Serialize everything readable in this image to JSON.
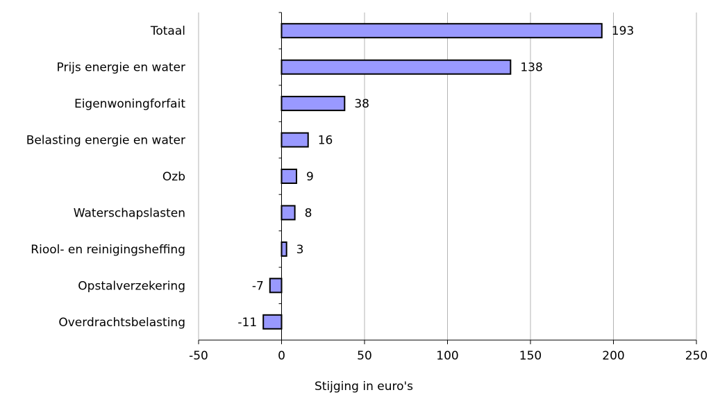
{
  "chart_data": {
    "type": "bar",
    "orientation": "horizontal",
    "categories": [
      "Totaal",
      "Prijs energie en water",
      "Eigenwoningforfait",
      "Belasting energie en water",
      "Ozb",
      "Waterschapslasten",
      "Riool- en reinigingsheffing",
      "Opstalverzekering",
      "Overdrachtsbelasting"
    ],
    "values": [
      193,
      138,
      38,
      16,
      9,
      8,
      3,
      -7,
      -11
    ],
    "data_labels": [
      "193",
      "138",
      "38",
      "16",
      "9",
      "8",
      "3",
      "-7",
      "-11"
    ],
    "xlabel": "Stijging in euro's",
    "xlim": [
      -50,
      250
    ],
    "xticks": [
      -50,
      0,
      50,
      100,
      150,
      200,
      250
    ],
    "xtick_labels": [
      "-50",
      "0",
      "50",
      "100",
      "150",
      "200",
      "250"
    ],
    "grid": true,
    "colors": {
      "bar_fill": "#9999ff",
      "bar_edge": "#000000",
      "grid": "#b3b3b3"
    }
  }
}
